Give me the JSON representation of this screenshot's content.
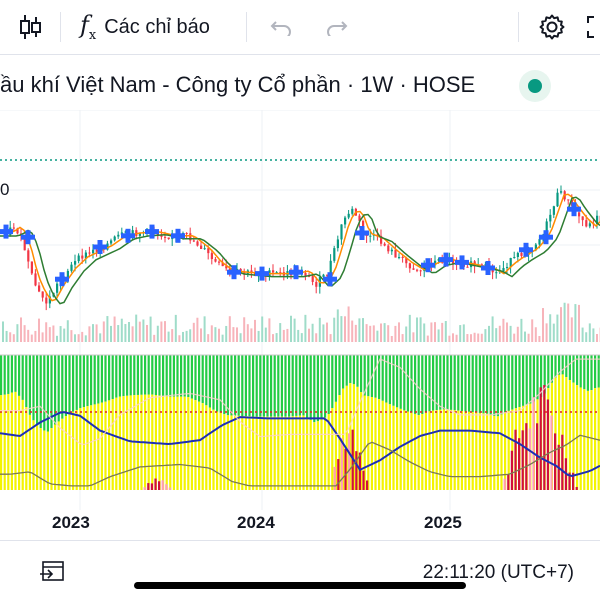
{
  "toolbar": {
    "indicators_label": "Các chỉ báo",
    "icons": [
      "candles-icon",
      "function-icon",
      "undo-icon",
      "redo-icon",
      "settings-icon",
      "fullscreen-icon"
    ]
  },
  "symbol": {
    "title": "ầu khí Việt Nam - Công ty Cổ phần · 1W · HOSE",
    "status": "market-open"
  },
  "price_fragment": "0",
  "x_axis": {
    "labels": [
      "2023",
      "2024",
      "2025"
    ]
  },
  "bottom_bar": {
    "time": "22:11:20 (UTC+7)",
    "goto_icon": "goto-date-icon"
  },
  "colors": {
    "up": "#089981",
    "down": "#f23645",
    "ma_fast": "#ff8c00",
    "ma_slow": "#2e7d32",
    "marker": "#2962ff",
    "osc_line": "#1e2fb5",
    "bg_green": "#22cc44",
    "bg_yellow": "#f4f400"
  },
  "chart_data": {
    "type": "candlestick",
    "timeframe": "1W",
    "x_labels": [
      "2023",
      "2024",
      "2025"
    ],
    "price_path": [
      [
        0,
        0.45
      ],
      [
        6,
        0.44
      ],
      [
        14,
        0.4
      ],
      [
        22,
        0.52
      ],
      [
        30,
        0.75
      ],
      [
        38,
        0.88
      ],
      [
        46,
        0.95
      ],
      [
        56,
        0.82
      ],
      [
        68,
        0.7
      ],
      [
        80,
        0.62
      ],
      [
        92,
        0.58
      ],
      [
        104,
        0.54
      ],
      [
        118,
        0.47
      ],
      [
        132,
        0.45
      ],
      [
        150,
        0.44
      ],
      [
        168,
        0.47
      ],
      [
        186,
        0.47
      ],
      [
        202,
        0.56
      ],
      [
        214,
        0.66
      ],
      [
        226,
        0.72
      ],
      [
        240,
        0.73
      ],
      [
        256,
        0.74
      ],
      [
        272,
        0.74
      ],
      [
        288,
        0.74
      ],
      [
        302,
        0.72
      ],
      [
        314,
        0.82
      ],
      [
        326,
        0.74
      ],
      [
        334,
        0.56
      ],
      [
        342,
        0.36
      ],
      [
        350,
        0.28
      ],
      [
        356,
        0.33
      ],
      [
        362,
        0.45
      ],
      [
        376,
        0.49
      ],
      [
        390,
        0.58
      ],
      [
        404,
        0.66
      ],
      [
        418,
        0.72
      ],
      [
        430,
        0.66
      ],
      [
        444,
        0.64
      ],
      [
        458,
        0.66
      ],
      [
        472,
        0.68
      ],
      [
        486,
        0.7
      ],
      [
        496,
        0.74
      ],
      [
        506,
        0.67
      ],
      [
        516,
        0.62
      ],
      [
        530,
        0.56
      ],
      [
        542,
        0.46
      ],
      [
        550,
        0.3
      ],
      [
        556,
        0.18
      ],
      [
        562,
        0.17
      ],
      [
        570,
        0.26
      ],
      [
        580,
        0.35
      ],
      [
        588,
        0.4
      ],
      [
        596,
        0.34
      ],
      [
        600,
        0.36
      ]
    ],
    "markers": [
      [
        6,
        0.44
      ],
      [
        28,
        0.48
      ],
      [
        62,
        0.78
      ],
      [
        100,
        0.55
      ],
      [
        128,
        0.47
      ],
      [
        152,
        0.44
      ],
      [
        178,
        0.47
      ],
      [
        234,
        0.73
      ],
      [
        262,
        0.74
      ],
      [
        296,
        0.73
      ],
      [
        330,
        0.78
      ],
      [
        362,
        0.45
      ],
      [
        428,
        0.68
      ],
      [
        446,
        0.64
      ],
      [
        462,
        0.66
      ],
      [
        488,
        0.7
      ],
      [
        526,
        0.57
      ],
      [
        546,
        0.48
      ],
      [
        574,
        0.28
      ]
    ],
    "oscillator_line": [
      [
        0,
        0.58
      ],
      [
        20,
        0.6
      ],
      [
        40,
        0.5
      ],
      [
        62,
        0.42
      ],
      [
        80,
        0.45
      ],
      [
        100,
        0.56
      ],
      [
        130,
        0.64
      ],
      [
        170,
        0.66
      ],
      [
        200,
        0.63
      ],
      [
        222,
        0.52
      ],
      [
        240,
        0.46
      ],
      [
        270,
        0.47
      ],
      [
        300,
        0.47
      ],
      [
        326,
        0.47
      ],
      [
        340,
        0.62
      ],
      [
        360,
        0.85
      ],
      [
        380,
        0.78
      ],
      [
        400,
        0.68
      ],
      [
        420,
        0.6
      ],
      [
        440,
        0.56
      ],
      [
        470,
        0.56
      ],
      [
        500,
        0.58
      ],
      [
        520,
        0.66
      ],
      [
        540,
        0.76
      ],
      [
        556,
        0.82
      ],
      [
        570,
        0.9
      ],
      [
        590,
        0.86
      ],
      [
        600,
        0.82
      ]
    ]
  }
}
